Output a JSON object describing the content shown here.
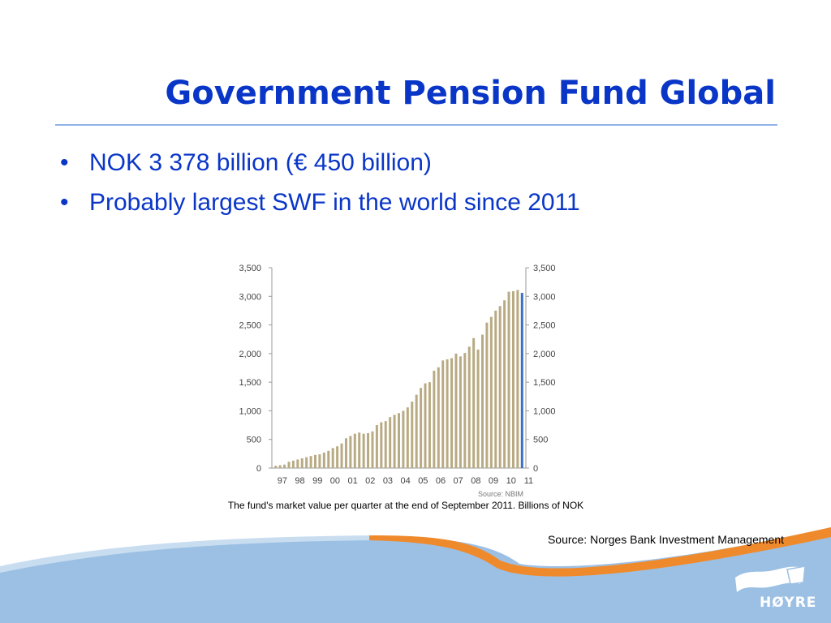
{
  "slide": {
    "title": "Government Pension Fund Global",
    "bullets": [
      "NOK 3 378 billion (€ 450 billion)",
      "Probably largest SWF in the world since 2011"
    ],
    "caption": "The fund's market value per quarter at the end of September 2011. Billions of NOK",
    "source": "Source: Norges Bank Investment Management",
    "logo_text": "HØYRE"
  },
  "colors": {
    "title": "#0a36c8",
    "rule": "#8eb2e8",
    "bar": "#b8aa82",
    "last_bar": "#3a6fc4",
    "wave_blue": "#9cc0e4",
    "wave_orange": "#ef8a2c"
  },
  "chart_data": {
    "type": "bar",
    "x_tick_labels": [
      "97",
      "98",
      "99",
      "00",
      "01",
      "02",
      "03",
      "04",
      "05",
      "06",
      "07",
      "08",
      "09",
      "10",
      "11"
    ],
    "y_tick_labels": [
      "0",
      "500",
      "1,000",
      "1,500",
      "2,000",
      "2,500",
      "3,000",
      "3,500"
    ],
    "ylim": [
      0,
      3500
    ],
    "source_note": "Source: NBIM",
    "values": [
      40,
      50,
      60,
      110,
      130,
      150,
      170,
      190,
      210,
      230,
      240,
      270,
      300,
      350,
      380,
      430,
      520,
      560,
      600,
      620,
      600,
      610,
      640,
      750,
      800,
      820,
      890,
      930,
      960,
      1000,
      1060,
      1160,
      1280,
      1400,
      1480,
      1500,
      1700,
      1760,
      1880,
      1900,
      1920,
      2000,
      1950,
      2010,
      2120,
      2270,
      2070,
      2330,
      2540,
      2640,
      2750,
      2830,
      2930,
      3080,
      3090,
      3110,
      3060
    ],
    "highlight_last": true
  }
}
